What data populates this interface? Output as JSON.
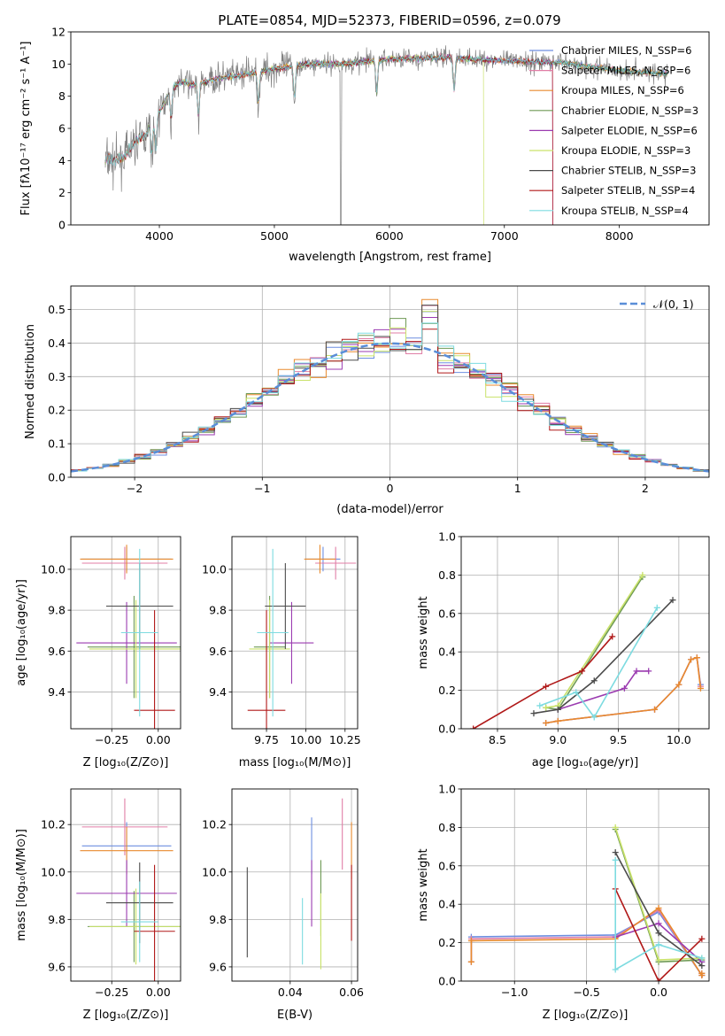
{
  "figure": {
    "title": "PLATE=0854, MJD=52373, FIBERID=0596, z=0.079"
  },
  "colors": {
    "chabrier_miles": "#6d8ee0",
    "salpeter_miles": "#e07ea6",
    "kroupa_miles": "#e88a2e",
    "chabrier_elodie": "#6f9a55",
    "salpeter_elodie": "#9b3bb0",
    "kroupa_elodie": "#c9e26a",
    "chabrier_stelib": "#4b4b4b",
    "salpeter_stelib": "#b01818",
    "kroupa_stelib": "#7ddbe0",
    "spectrum": "#808080",
    "normal": "#5a8ed8"
  },
  "chart_data": [
    {
      "panel": "spectrum",
      "type": "line",
      "xlabel": "wavelength [Angstrom, rest frame]",
      "ylabel": "Flux [fλ10⁻¹⁷ erg cm⁻² s⁻¹ A⁻¹]",
      "xlim": [
        3230,
        8780
      ],
      "ylim": [
        0,
        12
      ],
      "xticks": [
        "4000",
        "5000",
        "6000",
        "7000",
        "8000"
      ],
      "yticks": [
        "0",
        "2",
        "4",
        "6",
        "8",
        "10",
        "12"
      ],
      "legend_position": "right",
      "legend": [
        "Chabrier MILES, N_SSP=6",
        "Salpeter MILES, N_SSP=6",
        "Kroupa MILES, N_SSP=6",
        "Chabrier ELODIE, N_SSP=3",
        "Salpeter ELODIE, N_SSP=6",
        "Kroupa ELODIE, N_SSP=3",
        "Chabrier STELIB, N_SSP=3",
        "Salpeter STELIB, N_SSP=4",
        "Kroupa STELIB, N_SSP=4"
      ],
      "continuum": {
        "x": [
          3500,
          3600,
          3700,
          3800,
          3900,
          4000,
          4100,
          4200,
          4300,
          4500,
          4700,
          5000,
          5300,
          5600,
          6000,
          6500,
          7000,
          7500,
          8000,
          8400
        ],
        "y": [
          4.5,
          4.3,
          4.6,
          5.6,
          6.0,
          7.0,
          8.5,
          8.9,
          8.7,
          9.1,
          9.3,
          9.7,
          10.0,
          10.0,
          10.3,
          10.4,
          10.2,
          10.1,
          9.6,
          9.4
        ]
      }
    },
    {
      "panel": "residuals",
      "type": "histogram",
      "xlabel": "(data-model)/error",
      "ylabel": "Normed distribution",
      "xlim": [
        -2.5,
        2.5
      ],
      "ylim": [
        0,
        0.57
      ],
      "xticks": [
        "−2",
        "−1",
        "0",
        "1",
        "2"
      ],
      "yticks": [
        "0.0",
        "0.1",
        "0.2",
        "0.3",
        "0.4",
        "0.5"
      ],
      "legend_position": "top-right",
      "legend": [
        "𝒩(0, 1)"
      ],
      "bin_width": 0.125
    },
    {
      "panel": "age_vs_Z",
      "type": "errorbar",
      "xlabel": "Z [log₁₀(Z/Z⊙)]",
      "ylabel": "age  [log₁₀(age/yr)]",
      "xlim": [
        -0.47,
        0.12
      ],
      "ylim": [
        9.22,
        10.16
      ],
      "xticks": [
        "−0.25",
        "0.00"
      ],
      "yticks": [
        "9.4",
        "9.6",
        "9.8",
        "10.0"
      ],
      "points": [
        {
          "x": -0.17,
          "y": 10.05,
          "xerr": 0.24,
          "yerr": 0.06
        },
        {
          "x": -0.18,
          "y": 10.03,
          "xerr": 0.23,
          "yerr": 0.08
        },
        {
          "x": -0.17,
          "y": 10.05,
          "xerr": 0.25,
          "yerr": 0.07
        },
        {
          "x": -0.13,
          "y": 9.62,
          "xerr": 0.25,
          "yerr": 0.25
        },
        {
          "x": -0.17,
          "y": 9.64,
          "xerr": 0.27,
          "yerr": 0.2
        },
        {
          "x": -0.12,
          "y": 9.61,
          "xerr": 0.25,
          "yerr": 0.24
        },
        {
          "x": -0.1,
          "y": 9.82,
          "xerr": 0.18,
          "yerr": 0.21
        },
        {
          "x": -0.02,
          "y": 9.31,
          "xerr": 0.11,
          "yerr": 0.49
        },
        {
          "x": -0.1,
          "y": 9.69,
          "xerr": 0.1,
          "yerr": 0.41
        }
      ]
    },
    {
      "panel": "age_vs_mass",
      "type": "errorbar",
      "xlabel": "mass [log₁₀(M/M⊙)]",
      "ylabel": "",
      "xlim": [
        9.53,
        10.33
      ],
      "ylim": [
        9.22,
        10.16
      ],
      "xticks": [
        "9.75",
        "10.00",
        "10.25"
      ],
      "yticks": [
        "9.4",
        "9.6",
        "9.8",
        "10.0"
      ],
      "points": [
        {
          "x": 10.11,
          "y": 10.05,
          "xerr": 0.11,
          "yerr": 0.06
        },
        {
          "x": 10.19,
          "y": 10.03,
          "xerr": 0.13,
          "yerr": 0.08
        },
        {
          "x": 10.09,
          "y": 10.05,
          "xerr": 0.1,
          "yerr": 0.07
        },
        {
          "x": 9.77,
          "y": 9.62,
          "xerr": 0.1,
          "yerr": 0.25
        },
        {
          "x": 9.91,
          "y": 9.64,
          "xerr": 0.14,
          "yerr": 0.2
        },
        {
          "x": 9.77,
          "y": 9.61,
          "xerr": 0.13,
          "yerr": 0.24
        },
        {
          "x": 9.87,
          "y": 9.82,
          "xerr": 0.13,
          "yerr": 0.21
        },
        {
          "x": 9.75,
          "y": 9.31,
          "xerr": 0.12,
          "yerr": 0.49
        },
        {
          "x": 9.79,
          "y": 9.69,
          "xerr": 0.1,
          "yerr": 0.41
        }
      ]
    },
    {
      "panel": "weight_vs_age",
      "type": "line",
      "xlabel": "age  [log₁₀(age/yr)]",
      "ylabel": "mass weight",
      "xlim": [
        8.2,
        10.25
      ],
      "ylim": [
        0,
        1.0
      ],
      "xticks": [
        "8.5",
        "9.0",
        "9.5",
        "10.0"
      ],
      "yticks": [
        "0.0",
        "0.2",
        "0.4",
        "0.6",
        "0.8",
        "1.0"
      ],
      "series": [
        {
          "x": [
            8.9,
            9.0,
            9.8,
            10.0,
            10.1,
            10.15,
            10.18
          ],
          "y": [
            0.03,
            0.04,
            0.1,
            0.23,
            0.36,
            0.37,
            0.23
          ]
        },
        {
          "x": [
            8.9,
            9.0,
            9.8,
            10.0,
            10.1,
            10.15,
            10.18
          ],
          "y": [
            0.03,
            0.04,
            0.1,
            0.23,
            0.36,
            0.37,
            0.22
          ]
        },
        {
          "x": [
            8.9,
            9.0,
            9.8,
            10.0,
            10.1,
            10.15,
            10.18
          ],
          "y": [
            0.03,
            0.04,
            0.1,
            0.23,
            0.36,
            0.37,
            0.21
          ]
        },
        {
          "x": [
            8.9,
            9.0,
            9.7
          ],
          "y": [
            0.11,
            0.1,
            0.79
          ]
        },
        {
          "x": [
            9.0,
            9.55,
            9.65,
            9.75
          ],
          "y": [
            0.1,
            0.21,
            0.3,
            0.3
          ]
        },
        {
          "x": [
            8.9,
            9.0,
            9.7
          ],
          "y": [
            0.11,
            0.12,
            0.8
          ]
        },
        {
          "x": [
            8.8,
            9.0,
            9.3,
            9.95
          ],
          "y": [
            0.08,
            0.1,
            0.25,
            0.67
          ]
        },
        {
          "x": [
            8.3,
            8.9,
            9.2,
            9.45
          ],
          "y": [
            0.0,
            0.22,
            0.3,
            0.48
          ]
        },
        {
          "x": [
            8.85,
            9.15,
            9.3,
            9.82
          ],
          "y": [
            0.12,
            0.19,
            0.06,
            0.63
          ]
        }
      ]
    },
    {
      "panel": "mass_vs_Z",
      "type": "errorbar",
      "xlabel": "Z [log₁₀(Z/Z⊙)]",
      "ylabel": "mass [log₁₀(M/M⊙)]",
      "xlim": [
        -0.47,
        0.12
      ],
      "ylim": [
        9.54,
        10.35
      ],
      "xticks": [
        "−0.25",
        "0.00"
      ],
      "yticks": [
        "9.6",
        "9.8",
        "10.0",
        "10.2"
      ],
      "points": [
        {
          "x": -0.17,
          "y": 10.11,
          "xerr": 0.24,
          "yerr": 0.1
        },
        {
          "x": -0.18,
          "y": 10.19,
          "xerr": 0.23,
          "yerr": 0.12
        },
        {
          "x": -0.17,
          "y": 10.09,
          "xerr": 0.25,
          "yerr": 0.1
        },
        {
          "x": -0.13,
          "y": 9.77,
          "xerr": 0.25,
          "yerr": 0.15
        },
        {
          "x": -0.17,
          "y": 9.91,
          "xerr": 0.27,
          "yerr": 0.14
        },
        {
          "x": -0.12,
          "y": 9.77,
          "xerr": 0.25,
          "yerr": 0.16
        },
        {
          "x": -0.1,
          "y": 9.87,
          "xerr": 0.18,
          "yerr": 0.17
        },
        {
          "x": -0.02,
          "y": 9.75,
          "xerr": 0.11,
          "yerr": 0.28
        },
        {
          "x": -0.1,
          "y": 9.79,
          "xerr": 0.1,
          "yerr": 0.17
        }
      ]
    },
    {
      "panel": "mass_vs_ebv",
      "type": "errorbar",
      "xlabel": "E(B-V)",
      "ylabel": "",
      "xlim": [
        0.021,
        0.062
      ],
      "ylim": [
        9.54,
        10.35
      ],
      "xticks": [
        "0.04",
        "0.06"
      ],
      "yticks": [
        "9.6",
        "9.8",
        "10.0",
        "10.2"
      ],
      "points": [
        {
          "x": 0.047,
          "y": 10.11,
          "yerr": 0.12
        },
        {
          "x": 0.057,
          "y": 10.16,
          "yerr": 0.15
        },
        {
          "x": 0.06,
          "y": 10.09,
          "yerr": 0.12
        },
        {
          "x": 0.05,
          "y": 9.89,
          "yerr": 0.16
        },
        {
          "x": 0.047,
          "y": 9.91,
          "yerr": 0.14
        },
        {
          "x": 0.05,
          "y": 9.75,
          "yerr": 0.16
        },
        {
          "x": 0.026,
          "y": 9.83,
          "yerr": 0.19
        },
        {
          "x": 0.06,
          "y": 9.87,
          "yerr": 0.16
        },
        {
          "x": 0.044,
          "y": 9.75,
          "yerr": 0.14
        }
      ]
    },
    {
      "panel": "weight_vs_Z",
      "type": "line",
      "xlabel": "Z [log₁₀(Z/Z⊙)]",
      "ylabel": "mass weight",
      "xlim": [
        -1.37,
        0.35
      ],
      "ylim": [
        0,
        1.0
      ],
      "xticks": [
        "−1.0",
        "−0.5",
        "0.0"
      ],
      "yticks": [
        "0.0",
        "0.2",
        "0.4",
        "0.6",
        "0.8",
        "1.0"
      ],
      "series": [
        {
          "x": [
            -1.3,
            -1.3,
            -0.3,
            0.0,
            0.3,
            0.3
          ],
          "y": [
            0.1,
            0.23,
            0.24,
            0.36,
            0.03,
            0.04
          ]
        },
        {
          "x": [
            -1.3,
            -1.3,
            -0.3,
            0.0,
            0.3,
            0.3
          ],
          "y": [
            0.1,
            0.22,
            0.23,
            0.37,
            0.03,
            0.04
          ]
        },
        {
          "x": [
            -1.3,
            -1.3,
            -0.3,
            0.0,
            0.3,
            0.3
          ],
          "y": [
            0.1,
            0.21,
            0.22,
            0.38,
            0.03,
            0.04
          ]
        },
        {
          "x": [
            -0.3,
            0.0,
            0.3
          ],
          "y": [
            0.79,
            0.1,
            0.11
          ]
        },
        {
          "x": [
            -0.3,
            0.0,
            0.3
          ],
          "y": [
            0.23,
            0.3,
            0.1
          ]
        },
        {
          "x": [
            -0.3,
            0.0,
            0.3
          ],
          "y": [
            0.8,
            0.11,
            0.12
          ]
        },
        {
          "x": [
            -0.3,
            0.0,
            0.3
          ],
          "y": [
            0.67,
            0.25,
            0.08
          ]
        },
        {
          "x": [
            -0.3,
            0.0,
            0.3
          ],
          "y": [
            0.48,
            0.0,
            0.22
          ]
        },
        {
          "x": [
            -0.3,
            -0.3,
            0.0,
            0.3
          ],
          "y": [
            0.63,
            0.06,
            0.19,
            0.12
          ]
        }
      ]
    }
  ]
}
